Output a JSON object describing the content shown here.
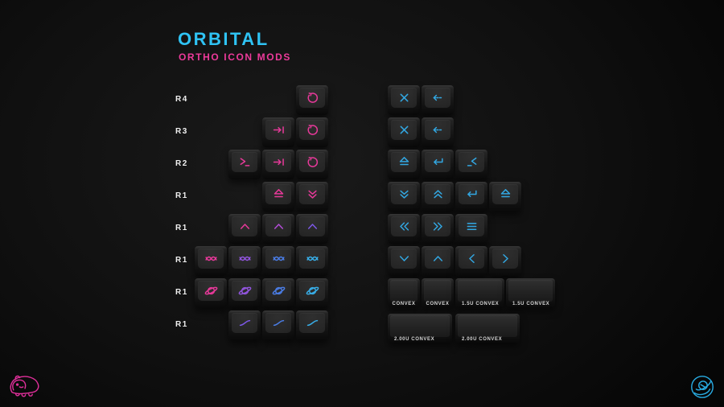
{
  "header": {
    "title": "ORBITAL",
    "subtitle": "ORTHO ICON MODS"
  },
  "palette": {
    "title_cyan": "#2fc3f4",
    "subtitle_pink": "#ee3a9b",
    "pink": "#e8399a",
    "magenta": "#b34cd6",
    "violet": "#9155dd",
    "purple": "#7c58e6",
    "blue": "#4a7ce4",
    "cyan": "#38aee8",
    "right_cyan": "#32a7e2",
    "row_label": "#f0f0f0",
    "convex_label": "#d8d8d8",
    "logo_pink": "#e02f9a",
    "logo_cyan": "#28abe2"
  },
  "rows": [
    "R4",
    "R3",
    "R2",
    "R1",
    "R1",
    "R1",
    "R1",
    "R1"
  ],
  "keys": [
    {
      "group": "left",
      "row": 0,
      "col": 3,
      "icon": "rotate",
      "color": "pink"
    },
    {
      "group": "left",
      "row": 1,
      "col": 2,
      "icon": "tab",
      "color": "pink"
    },
    {
      "group": "left",
      "row": 1,
      "col": 3,
      "icon": "rotate",
      "color": "pink"
    },
    {
      "group": "left",
      "row": 2,
      "col": 1,
      "icon": "terminal",
      "color": "pink"
    },
    {
      "group": "left",
      "row": 2,
      "col": 2,
      "icon": "tab",
      "color": "pink"
    },
    {
      "group": "left",
      "row": 2,
      "col": 3,
      "icon": "rotate",
      "color": "pink"
    },
    {
      "group": "left",
      "row": 3,
      "col": 2,
      "icon": "caps",
      "color": "pink"
    },
    {
      "group": "left",
      "row": 3,
      "col": 3,
      "icon": "chevrons-down",
      "color": "pink"
    },
    {
      "group": "left",
      "row": 4,
      "col": 1,
      "icon": "chevron-up",
      "color": "pink"
    },
    {
      "group": "left",
      "row": 4,
      "col": 2,
      "icon": "chevron-up",
      "color": "magenta"
    },
    {
      "group": "left",
      "row": 4,
      "col": 3,
      "icon": "chevron-up",
      "color": "purple"
    },
    {
      "group": "left",
      "row": 5,
      "col": 0,
      "icon": "wave",
      "color": "pink"
    },
    {
      "group": "left",
      "row": 5,
      "col": 1,
      "icon": "wave",
      "color": "violet"
    },
    {
      "group": "left",
      "row": 5,
      "col": 2,
      "icon": "wave",
      "color": "blue"
    },
    {
      "group": "left",
      "row": 5,
      "col": 3,
      "icon": "wave",
      "color": "cyan"
    },
    {
      "group": "left",
      "row": 6,
      "col": 0,
      "icon": "planet",
      "color": "pink"
    },
    {
      "group": "left",
      "row": 6,
      "col": 1,
      "icon": "planet",
      "color": "violet"
    },
    {
      "group": "left",
      "row": 6,
      "col": 2,
      "icon": "planet",
      "color": "blue"
    },
    {
      "group": "left",
      "row": 6,
      "col": 3,
      "icon": "planet",
      "color": "cyan"
    },
    {
      "group": "left",
      "row": 7,
      "col": 1,
      "icon": "sigmoid",
      "color": "purple"
    },
    {
      "group": "left",
      "row": 7,
      "col": 2,
      "icon": "sigmoid",
      "color": "blue"
    },
    {
      "group": "left",
      "row": 7,
      "col": 3,
      "icon": "sigmoid",
      "color": "cyan"
    },
    {
      "group": "right",
      "row": 0,
      "col": 0,
      "icon": "close",
      "color": "right_cyan"
    },
    {
      "group": "right",
      "row": 0,
      "col": 1,
      "icon": "backspace",
      "color": "right_cyan"
    },
    {
      "group": "right",
      "row": 1,
      "col": 0,
      "icon": "close",
      "color": "right_cyan"
    },
    {
      "group": "right",
      "row": 1,
      "col": 1,
      "icon": "backspace",
      "color": "right_cyan"
    },
    {
      "group": "right",
      "row": 2,
      "col": 0,
      "icon": "caps",
      "color": "right_cyan"
    },
    {
      "group": "right",
      "row": 2,
      "col": 1,
      "icon": "return",
      "color": "right_cyan"
    },
    {
      "group": "right",
      "row": 2,
      "col": 2,
      "icon": "terminal-left",
      "color": "right_cyan"
    },
    {
      "group": "right",
      "row": 3,
      "col": 0,
      "icon": "chevrons-down",
      "color": "right_cyan"
    },
    {
      "group": "right",
      "row": 3,
      "col": 1,
      "icon": "chevrons-up",
      "color": "right_cyan"
    },
    {
      "group": "right",
      "row": 3,
      "col": 2,
      "icon": "return",
      "color": "right_cyan"
    },
    {
      "group": "right",
      "row": 3,
      "col": 3,
      "icon": "caps",
      "color": "right_cyan"
    },
    {
      "group": "right",
      "row": 4,
      "col": 0,
      "icon": "chevrons-left",
      "color": "right_cyan"
    },
    {
      "group": "right",
      "row": 4,
      "col": 1,
      "icon": "chevrons-right",
      "color": "right_cyan"
    },
    {
      "group": "right",
      "row": 4,
      "col": 2,
      "icon": "menu",
      "color": "right_cyan"
    },
    {
      "group": "right",
      "row": 5,
      "col": 0,
      "icon": "chevron-down",
      "color": "right_cyan"
    },
    {
      "group": "right",
      "row": 5,
      "col": 1,
      "icon": "chevron-up",
      "color": "right_cyan"
    },
    {
      "group": "right",
      "row": 5,
      "col": 2,
      "icon": "chevron-left",
      "color": "right_cyan"
    },
    {
      "group": "right",
      "row": 5,
      "col": 3,
      "icon": "chevron-right",
      "color": "right_cyan"
    }
  ],
  "convex_keys": [
    {
      "r": 0,
      "u": 0,
      "w": 1,
      "label": "CONVEX"
    },
    {
      "r": 0,
      "u": 1,
      "w": 1,
      "label": "CONVEX"
    },
    {
      "r": 0,
      "u": 2,
      "w": 1.5,
      "label": "1.5U CONVEX"
    },
    {
      "r": 0,
      "u": 3.5,
      "w": 1.5,
      "label": "1.5U CONVEX"
    },
    {
      "r": 1,
      "u": 0,
      "w": 2,
      "label": "2.00U CONVEX"
    },
    {
      "r": 1,
      "u": 2,
      "w": 2,
      "label": "2.00U CONVEX"
    }
  ]
}
